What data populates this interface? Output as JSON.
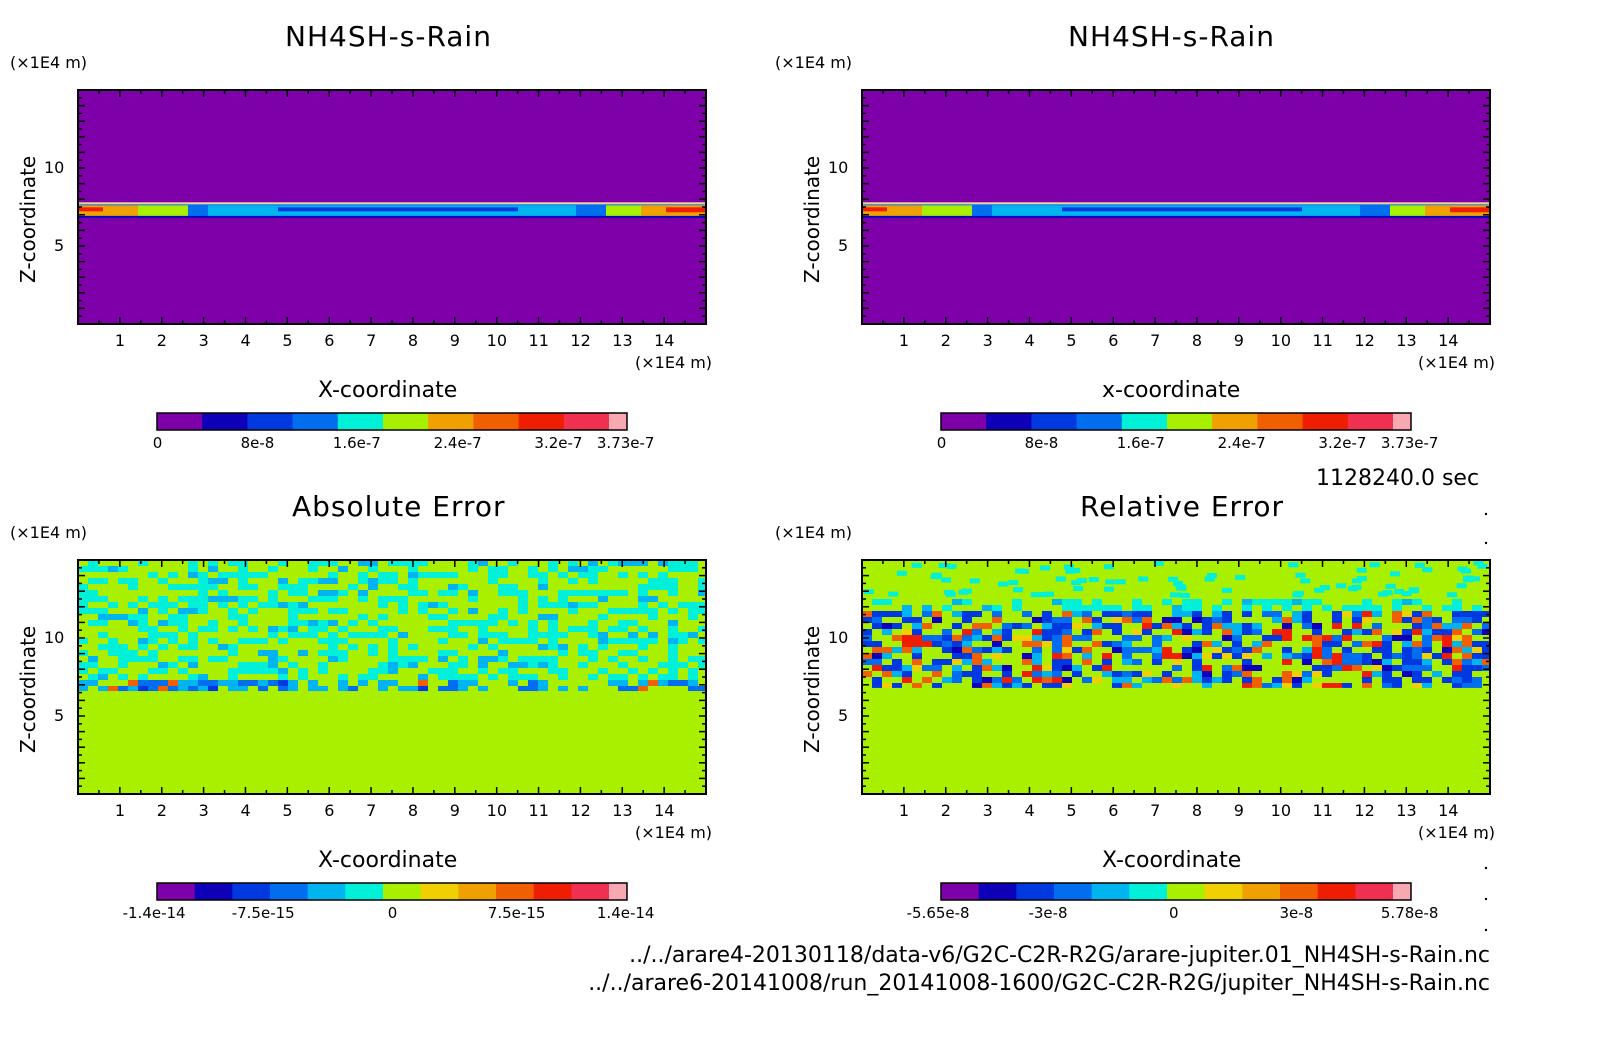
{
  "footer": {
    "time": "1128240.0 sec",
    "path1": "../../arare4-20130118/data-v6/G2C-C2R-R2G/arare-jupiter.01_NH4SH-s-Rain.nc",
    "path2": "../../arare6-20141008/run_20141008-1600/G2C-C2R-R2G/jupiter_NH4SH-s-Rain.nc"
  },
  "palette": [
    "#7d00a8",
    "#0d00b8",
    "#0039e0",
    "#006eef",
    "#00b4f0",
    "#00f0d8",
    "#a8f000",
    "#f0d000",
    "#f0a000",
    "#f06000",
    "#f01e00",
    "#f03050",
    "#f8a8b0"
  ],
  "chart_data": [
    {
      "type": "heatmap",
      "title": "NH4SH-s-Rain",
      "xlabel": "X-coordinate",
      "ylabel": "Z-coordinate",
      "x_unit": "(×1E4 m)",
      "y_unit": "(×1E4 m)",
      "xlim": [
        0,
        15
      ],
      "ylim": [
        0,
        15
      ],
      "x_ticks": [
        "1",
        "2",
        "3",
        "4",
        "5",
        "6",
        "7",
        "8",
        "9",
        "10",
        "11",
        "12",
        "13",
        "14"
      ],
      "y_ticks": [
        "5",
        "10"
      ],
      "pattern": "layer",
      "layer_z": [
        6.8,
        7.8
      ],
      "colorbar": {
        "min": 0,
        "max": 3.73e-07,
        "labels": [
          "0",
          "8e-8",
          "1.6e-7",
          "2.4e-7",
          "3.2e-7",
          "3.73e-7"
        ]
      }
    },
    {
      "type": "heatmap",
      "title": "NH4SH-s-Rain",
      "xlabel": "x-coordinate",
      "ylabel": "Z-coordinate",
      "x_unit": "(×1E4 m)",
      "y_unit": "(×1E4 m)",
      "xlim": [
        0,
        15
      ],
      "ylim": [
        0,
        15
      ],
      "x_ticks": [
        "1",
        "2",
        "3",
        "4",
        "5",
        "6",
        "7",
        "8",
        "9",
        "10",
        "11",
        "12",
        "13",
        "14"
      ],
      "y_ticks": [
        "5",
        "10"
      ],
      "pattern": "layer",
      "layer_z": [
        6.8,
        7.8
      ],
      "colorbar": {
        "min": 0,
        "max": 3.73e-07,
        "labels": [
          "0",
          "8e-8",
          "1.6e-7",
          "2.4e-7",
          "3.2e-7",
          "3.73e-7"
        ]
      }
    },
    {
      "type": "heatmap",
      "title": "Absolute Error",
      "xlabel": "X-coordinate",
      "ylabel": "Z-coordinate",
      "x_unit": "(×1E4 m)",
      "y_unit": "(×1E4 m)",
      "xlim": [
        0,
        15
      ],
      "ylim": [
        0,
        15
      ],
      "x_ticks": [
        "1",
        "2",
        "3",
        "4",
        "5",
        "6",
        "7",
        "8",
        "9",
        "10",
        "11",
        "12",
        "13",
        "14"
      ],
      "y_ticks": [
        "5",
        "10"
      ],
      "pattern": "absnoise",
      "noise_z": [
        6.6,
        15
      ],
      "colorbar": {
        "min": -1.4e-14,
        "max": 1.4e-14,
        "labels": [
          "-1.4e-14",
          "-7.5e-15",
          "0",
          "7.5e-15",
          "1.4e-14"
        ]
      }
    },
    {
      "type": "heatmap",
      "title": "Relative Error",
      "xlabel": "X-coordinate",
      "ylabel": "Z-coordinate",
      "x_unit": "(×1E4 m)",
      "y_unit": "(×1E4 m)",
      "xlim": [
        0,
        15
      ],
      "ylim": [
        0,
        15
      ],
      "x_ticks": [
        "1",
        "2",
        "3",
        "4",
        "5",
        "6",
        "7",
        "8",
        "9",
        "10",
        "11",
        "12",
        "13",
        "14"
      ],
      "y_ticks": [
        "5",
        "10"
      ],
      "pattern": "relnoise",
      "noise_z": [
        6.8,
        12.5
      ],
      "colorbar": {
        "min": -5.65e-08,
        "max": 5.78e-08,
        "labels": [
          "-5.65e-8",
          "-3e-8",
          "0",
          "3e-8",
          "5.78e-8"
        ]
      }
    }
  ]
}
